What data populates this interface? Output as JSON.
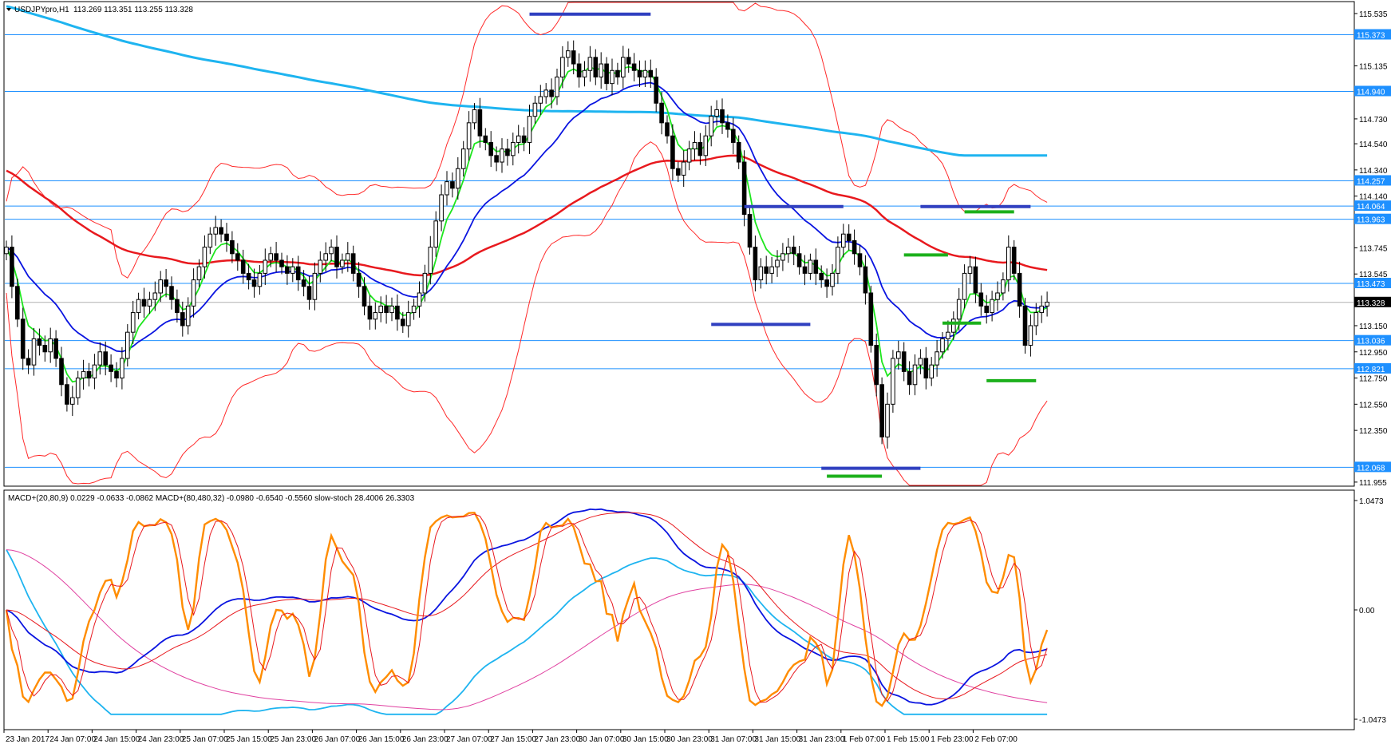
{
  "chart_data": {
    "type": "candlestick",
    "symbol_header": "USDJPYpro,H1",
    "ohlc_header": "113.269 113.351 113.255 113.328",
    "indicator_header": "MACD+(20,80,9) 0.0229 -0.0633 -0.0862   MACD+(80,480,32) -0.0980 -0.6540 -0.5560   slow-stoch 28.4006 26.3303",
    "price_ticks": [
      "115.535",
      "115.135",
      "114.730",
      "114.540",
      "114.340",
      "114.140",
      "113.745",
      "113.545",
      "113.150",
      "112.950",
      "112.750",
      "112.550",
      "112.350",
      "111.955"
    ],
    "price_ylim": [
      111.93,
      115.62
    ],
    "indicator_ticks": [
      "1.0473",
      "0.00",
      "-1.0473"
    ],
    "indicator_ylim": [
      -1.0473,
      1.0473
    ],
    "time_labels": [
      "23 Jan 2017",
      "24 Jan 07:00",
      "24 Jan 15:00",
      "24 Jan 23:00",
      "25 Jan 07:00",
      "25 Jan 15:00",
      "25 Jan 23:00",
      "26 Jan 07:00",
      "26 Jan 15:00",
      "26 Jan 23:00",
      "27 Jan 07:00",
      "27 Jan 15:00",
      "27 Jan 23:00",
      "30 Jan 07:00",
      "30 Jan 15:00",
      "30 Jan 23:00",
      "31 Jan 07:00",
      "31 Jan 15:00",
      "31 Jan 23:00",
      "1 Feb 07:00",
      "1 Feb 15:00",
      "1 Feb 23:00",
      "2 Feb 07:00"
    ],
    "levels": [
      {
        "value": 115.373,
        "label": "115.373"
      },
      {
        "value": 114.94,
        "label": "114.940"
      },
      {
        "value": 114.257,
        "label": "114.257"
      },
      {
        "value": 114.064,
        "label": "114.064"
      },
      {
        "value": 113.963,
        "label": "113.963"
      },
      {
        "value": 113.473,
        "label": "113.473"
      },
      {
        "value": 113.036,
        "label": "113.036"
      },
      {
        "value": 112.821,
        "label": "112.821"
      },
      {
        "value": 112.068,
        "label": "112.068"
      }
    ],
    "current_price": {
      "value": 113.328,
      "label": "113.328"
    },
    "closes": [
      113.75,
      113.45,
      113.2,
      112.9,
      112.85,
      113.05,
      113.0,
      112.95,
      113.05,
      112.9,
      112.7,
      112.55,
      112.6,
      112.75,
      112.8,
      112.75,
      112.85,
      112.95,
      112.85,
      112.8,
      112.75,
      112.9,
      113.1,
      113.25,
      113.35,
      113.3,
      113.35,
      113.4,
      113.5,
      113.45,
      113.35,
      113.25,
      113.15,
      113.3,
      113.5,
      113.6,
      113.75,
      113.85,
      113.9,
      113.85,
      113.8,
      113.7,
      113.65,
      113.55,
      113.5,
      113.45,
      113.55,
      113.65,
      113.7,
      113.65,
      113.6,
      113.55,
      113.6,
      113.5,
      113.45,
      113.35,
      113.55,
      113.65,
      113.7,
      113.75,
      113.6,
      113.65,
      113.7,
      113.55,
      113.45,
      113.3,
      113.2,
      113.25,
      113.3,
      113.25,
      113.3,
      113.2,
      113.15,
      113.25,
      113.3,
      113.4,
      113.55,
      113.75,
      113.95,
      114.15,
      114.25,
      114.2,
      114.35,
      114.5,
      114.7,
      114.8,
      114.6,
      114.55,
      114.45,
      114.4,
      114.5,
      114.45,
      114.55,
      114.6,
      114.55,
      114.75,
      114.85,
      114.9,
      114.95,
      114.9,
      115.05,
      115.2,
      115.25,
      115.15,
      115.05,
      115.1,
      115.2,
      115.05,
      115.15,
      115.0,
      115.1,
      115.05,
      115.2,
      115.15,
      115.1,
      115.05,
      115.1,
      115.05,
      114.85,
      114.7,
      114.6,
      114.35,
      114.3,
      114.4,
      114.5,
      114.55,
      114.45,
      114.6,
      114.75,
      114.8,
      114.7,
      114.65,
      114.55,
      114.4,
      114.0,
      113.75,
      113.5,
      113.6,
      113.55,
      113.6,
      113.65,
      113.7,
      113.75,
      113.7,
      113.6,
      113.55,
      113.65,
      113.55,
      113.5,
      113.45,
      113.55,
      113.75,
      113.85,
      113.8,
      113.7,
      113.6,
      113.4,
      113.0,
      112.7,
      112.3,
      112.55,
      112.9,
      112.95,
      112.8,
      112.7,
      112.85,
      112.9,
      112.75,
      112.85,
      112.95,
      113.05,
      113.1,
      113.2,
      113.35,
      113.55,
      113.6,
      113.4,
      113.3,
      113.25,
      113.35,
      113.4,
      113.5,
      113.75,
      113.55,
      113.3,
      113.0,
      113.15,
      113.25,
      113.3,
      113.33
    ],
    "bollinger_period": 20,
    "ema_periods": [
      5,
      20,
      80,
      480
    ]
  }
}
